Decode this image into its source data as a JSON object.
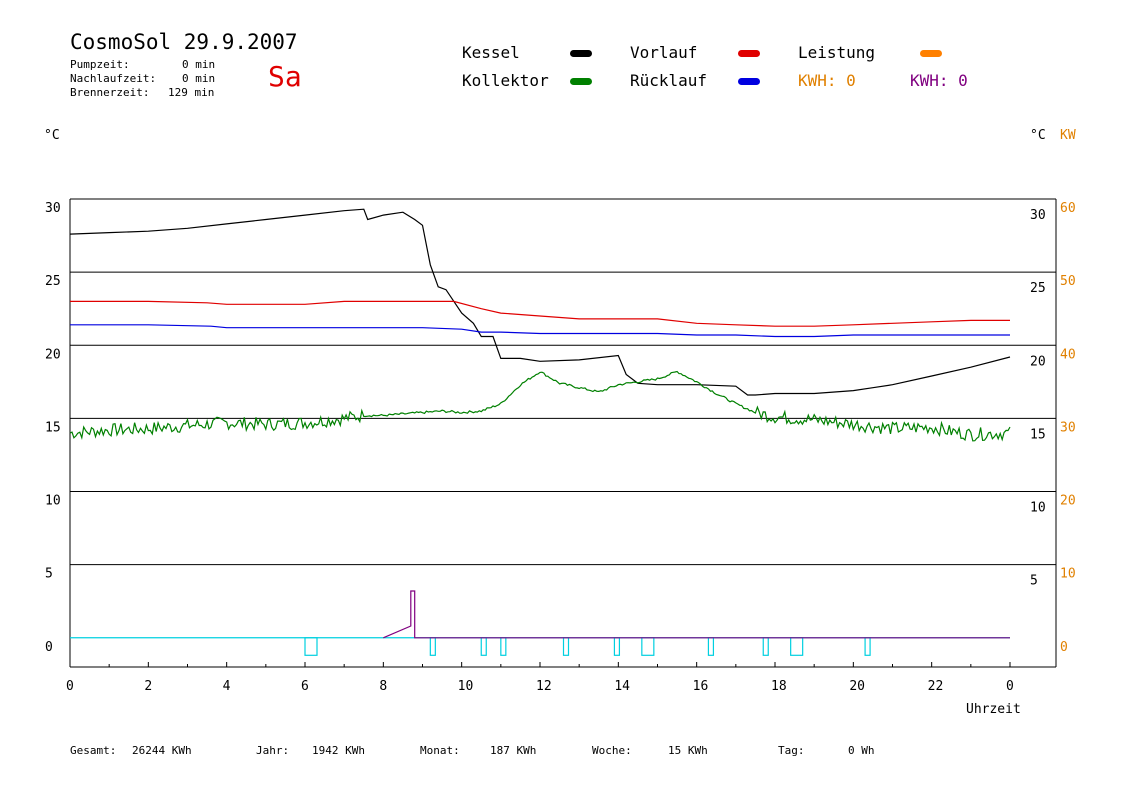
{
  "header": {
    "title": "CosmoSol 29.9.2007",
    "weekday": "Sa",
    "pumpzeit_label": "Pumpzeit:",
    "pumpzeit_value": "0 min",
    "nachlaufzeit_label": "Nachlaufzeit:",
    "nachlaufzeit_value": "0 min",
    "brennerzeit_label": "Brennerzeit:",
    "brennerzeit_value": "129 min"
  },
  "legend": {
    "kessel": "Kessel",
    "kollektor": "Kollektor",
    "vorlauf": "Vorlauf",
    "ruecklauf": "Rücklauf",
    "leistung": "Leistung",
    "kwh1": "KWH: 0",
    "kwh2": "KWH: 0"
  },
  "units": {
    "left": "°C",
    "right_c": "°C",
    "right_kw": "KW"
  },
  "footer": {
    "gesamt_label": "Gesamt:",
    "gesamt_value": "26244 KWh",
    "jahr_label": "Jahr:",
    "jahr_value": "1942 KWh",
    "monat_label": "Monat:",
    "monat_value": "187 KWh",
    "woche_label": "Woche:",
    "woche_value": "15 KWh",
    "tag_label": "Tag:",
    "tag_value": "0 Wh"
  },
  "colors": {
    "kessel": "#000000",
    "kollektor": "#008000",
    "vorlauf": "#e00000",
    "ruecklauf": "#0000e0",
    "leistung": "#ff8000",
    "kwh1": "#e08000",
    "kwh2": "#800080",
    "pump": "#00d0e0"
  },
  "chart_data": {
    "type": "line",
    "xlabel": "Uhrzeit",
    "xlim": [
      0,
      24
    ],
    "ylim": [
      -2,
      30
    ],
    "y_kw_lim": [
      0,
      60
    ],
    "grid": true,
    "x_ticks": [
      "0",
      "2",
      "4",
      "6",
      "8",
      "10",
      "12",
      "14",
      "16",
      "18",
      "20",
      "22",
      "0"
    ],
    "y_ticks_left": [
      "30",
      "25",
      "20",
      "15",
      "10",
      "5",
      "0"
    ],
    "y_ticks_right": [
      "30",
      "25",
      "20",
      "15",
      "10",
      "5"
    ],
    "y_ticks_kw": [
      "60",
      "50",
      "40",
      "30",
      "20",
      "10",
      "0"
    ],
    "series": [
      {
        "name": "Kessel",
        "color_key": "kessel",
        "x": [
          0,
          1,
          2,
          3,
          4,
          5,
          6,
          7,
          7.5,
          7.6,
          8,
          8.5,
          8.8,
          9,
          9.2,
          9.4,
          9.6,
          10,
          10.3,
          10.5,
          10.8,
          11,
          11.5,
          12,
          13,
          14,
          14.2,
          14.5,
          15,
          16,
          17,
          17.3,
          17.5,
          18,
          19,
          20,
          20.5,
          21,
          22,
          23,
          24
        ],
        "y": [
          27.6,
          27.7,
          27.8,
          28,
          28.3,
          28.6,
          28.9,
          29.2,
          29.3,
          28.6,
          28.9,
          29.1,
          28.6,
          28.2,
          25.5,
          24,
          23.8,
          22.2,
          21.5,
          20.6,
          20.6,
          19.1,
          19.1,
          18.9,
          19,
          19.3,
          18,
          17.4,
          17.3,
          17.3,
          17.2,
          16.6,
          16.6,
          16.7,
          16.7,
          16.9,
          17.1,
          17.3,
          17.9,
          18.5,
          19.2
        ]
      },
      {
        "name": "Vorlauf",
        "color_key": "vorlauf",
        "x": [
          0,
          2,
          3.5,
          4,
          6,
          7,
          8,
          9,
          9.8,
          10.5,
          11,
          12,
          13,
          14,
          15,
          16,
          17,
          18,
          19,
          20,
          21,
          22,
          23,
          24
        ],
        "y": [
          23,
          23,
          22.9,
          22.8,
          22.8,
          23,
          23,
          23,
          23,
          22.5,
          22.2,
          22,
          21.8,
          21.8,
          21.8,
          21.5,
          21.4,
          21.3,
          21.3,
          21.4,
          21.5,
          21.6,
          21.7,
          21.7
        ]
      },
      {
        "name": "Rücklauf",
        "color_key": "ruecklauf",
        "x": [
          0,
          2,
          3.6,
          4,
          6,
          7,
          8,
          9,
          10,
          10.5,
          11,
          12,
          13,
          14,
          15,
          16,
          17,
          18,
          19,
          20,
          21,
          22,
          23,
          24
        ],
        "y": [
          21.4,
          21.4,
          21.3,
          21.2,
          21.2,
          21.2,
          21.2,
          21.2,
          21.1,
          20.9,
          20.9,
          20.8,
          20.8,
          20.8,
          20.8,
          20.7,
          20.7,
          20.6,
          20.6,
          20.7,
          20.7,
          20.7,
          20.7,
          20.7
        ]
      },
      {
        "name": "Kollektor",
        "color_key": "kollektor",
        "x": [
          0,
          1,
          2,
          3,
          4,
          5,
          6,
          7,
          7.5,
          8,
          9,
          9.5,
          10,
          10.5,
          11,
          11.5,
          12,
          12.5,
          13,
          13.5,
          14,
          14.5,
          15,
          15.5,
          16,
          16.5,
          17,
          17.5,
          18,
          19,
          20,
          21,
          22,
          22.5,
          23,
          24
        ],
        "y": [
          14,
          14.2,
          14.3,
          14.5,
          14.7,
          14.6,
          14.7,
          15,
          15.2,
          15.2,
          15.4,
          15.5,
          15.4,
          15.5,
          16,
          17.3,
          18.2,
          17.4,
          17.1,
          16.8,
          17.3,
          17.5,
          17.7,
          18.2,
          17.5,
          16.7,
          16,
          15.4,
          15.1,
          14.9,
          14.6,
          14.3,
          14.4,
          14.1,
          13.9,
          14
        ]
      },
      {
        "name": "Leistung",
        "color_key": "kwh2",
        "x": [
          8,
          8.7,
          8.7,
          8.8,
          8.8,
          24
        ],
        "y": [
          0,
          0.8,
          3.2,
          3.2,
          0,
          0
        ]
      }
    ],
    "pump_events": [
      6.0,
      9.2,
      10.5,
      11.0,
      12.6,
      13.9,
      14.6,
      16.3,
      17.7,
      18.4,
      20.3
    ],
    "kwh_label_colors": [
      "kwh1",
      "kwh2"
    ]
  }
}
